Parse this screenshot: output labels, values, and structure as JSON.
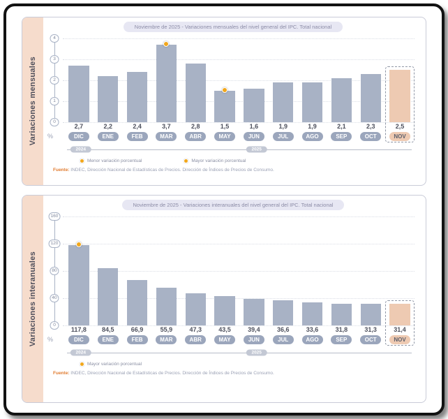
{
  "colors": {
    "bar": "#a8b2c5",
    "bar_highlight": "#eecab2",
    "sidebar_bg": "#f6dccc",
    "marker_dot": "#f2a71b",
    "title_bg": "#e7e7f3"
  },
  "chart_data": [
    {
      "type": "bar",
      "title": "Noviembre de 2025 - Variaciones mensuales del nivel general del IPC. Total nacional",
      "sidebar_label": "Variaciones mensuales",
      "categories": [
        "DIC",
        "ENE",
        "FEB",
        "MAR",
        "ABR",
        "MAY",
        "JUN",
        "JUL",
        "AGO",
        "SEP",
        "OCT",
        "NOV"
      ],
      "values": [
        2.7,
        2.2,
        2.4,
        3.7,
        2.8,
        1.5,
        1.6,
        1.9,
        1.9,
        2.1,
        2.3,
        2.5
      ],
      "value_labels": [
        "2,7",
        "2,2",
        "2,4",
        "3,7",
        "2,8",
        "1,5",
        "1,6",
        "1,9",
        "1,9",
        "2,1",
        "2,3",
        "2,5"
      ],
      "ymax": 4,
      "yticks": [
        0,
        1,
        2,
        3,
        4
      ],
      "axis_unit": "%",
      "highlight_index": 11,
      "max_marker_index": 3,
      "min_marker_index": 5,
      "years": [
        "2024",
        "2025"
      ],
      "legend": [
        "Menor variación porcentual",
        "Mayor variación porcentual"
      ],
      "source_label": "Fuente:",
      "source_text": "INDEC, Dirección Nacional de Estadísticas de Precios. Dirección de Índices de Precios de Consumo."
    },
    {
      "type": "bar",
      "title": "Noviembre de 2025 - Variaciones interanuales del nivel general del IPC. Total nacional",
      "sidebar_label": "Variaciones interanuales",
      "categories": [
        "DIC",
        "ENE",
        "FEB",
        "MAR",
        "ABR",
        "MAY",
        "JUN",
        "JUL",
        "AGO",
        "SEP",
        "OCT",
        "NOV"
      ],
      "values": [
        117.8,
        84.5,
        66.9,
        55.9,
        47.3,
        43.5,
        39.4,
        36.6,
        33.6,
        31.8,
        31.3,
        31.4
      ],
      "value_labels": [
        "117,8",
        "84,5",
        "66,9",
        "55,9",
        "47,3",
        "43,5",
        "39,4",
        "36,6",
        "33,6",
        "31,8",
        "31,3",
        "31,4"
      ],
      "ymax": 160,
      "yticks": [
        0,
        40,
        80,
        120,
        160
      ],
      "axis_unit": "%",
      "highlight_index": 11,
      "max_marker_index": 0,
      "min_marker_index": null,
      "years": [
        "2024",
        "2025"
      ],
      "legend": [
        "Mayor variación porcentual"
      ],
      "source_label": "Fuente:",
      "source_text": "INDEC, Dirección Nacional de Estadísticas de Precios. Dirección de Índices de Precios de Consumo."
    }
  ]
}
